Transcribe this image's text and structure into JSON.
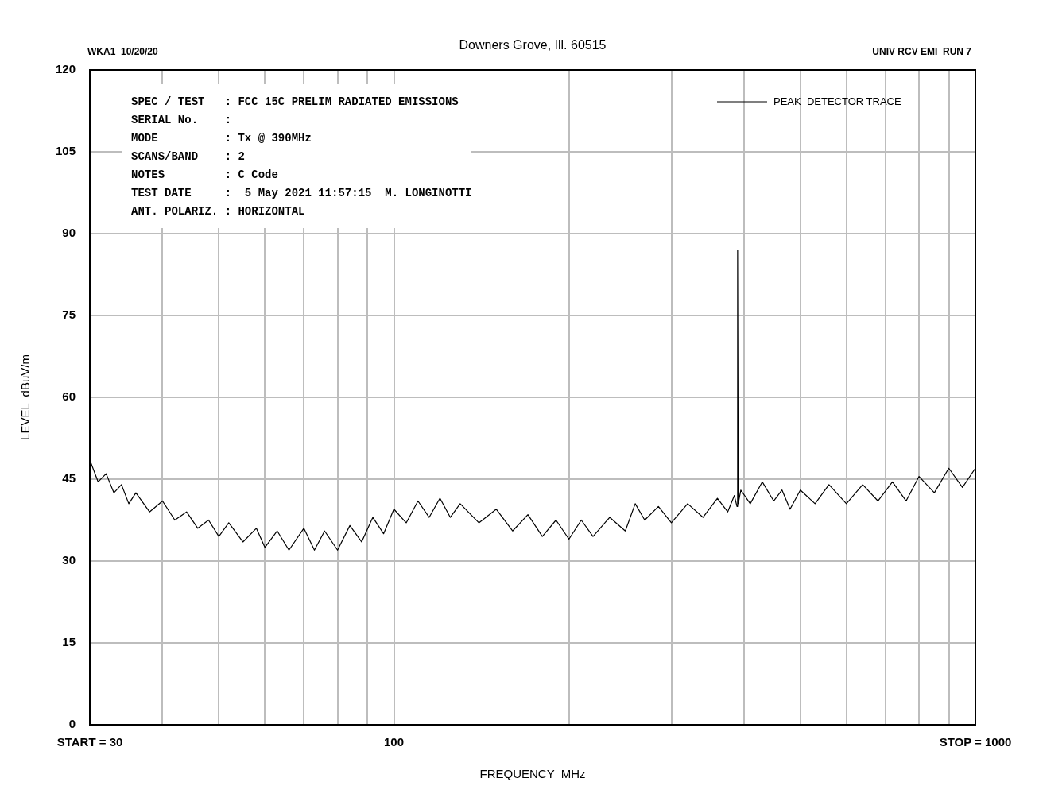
{
  "chart_data": {
    "type": "line",
    "subtitle": "Downers Grove, Ill. 60515",
    "xlabel": "FREQUENCY  MHz",
    "ylabel": "LEVEL  dBuV/m",
    "annotations": [
      "WKA1  10/20/20",
      "UNIV RCV EMI  RUN 7",
      "SPEC / TEST   : FCC 15C PRELIM RADIATED EMISSIONS",
      "SERIAL No.    :",
      "MODE          : Tx @ 390MHz",
      "SCANS/BAND    : 2",
      "NOTES         : C Code",
      "TEST DATE     :  5 May 2021 11:57:15  M. LONGINOTTI",
      "ANT. POLARIZ. : HORIZONTAL"
    ],
    "x": [
      30,
      31,
      32,
      33,
      34,
      35,
      36,
      38,
      40,
      42,
      44,
      46,
      48,
      50,
      52,
      55,
      58,
      60,
      63,
      66,
      70,
      73,
      76,
      80,
      84,
      88,
      92,
      96,
      100,
      105,
      110,
      115,
      120,
      125,
      130,
      140,
      150,
      160,
      170,
      180,
      190,
      200,
      210,
      220,
      235,
      250,
      260,
      270,
      285,
      300,
      320,
      340,
      360,
      375,
      385,
      389,
      390,
      391,
      395,
      410,
      430,
      450,
      465,
      480,
      500,
      530,
      560,
      600,
      640,
      680,
      720,
      760,
      800,
      850,
      900,
      950,
      1000
    ],
    "series": [
      {
        "name": "PEAK  DETECTOR TRACE",
        "color": "#000000",
        "values": [
          48.5,
          44.5,
          46,
          42.5,
          44,
          40.5,
          42.5,
          39,
          41,
          37.5,
          39,
          36,
          37.5,
          34.5,
          37,
          33.5,
          36,
          32.5,
          35.5,
          32,
          36,
          32,
          35.5,
          32,
          36.5,
          33.5,
          38,
          35,
          39.5,
          37,
          41,
          38,
          41.5,
          38,
          40.5,
          37,
          39.5,
          35.5,
          38.5,
          34.5,
          37.5,
          34,
          37.5,
          34.5,
          38,
          35.5,
          40.5,
          37.5,
          40,
          37,
          40.5,
          38,
          41.5,
          39,
          42,
          40,
          87,
          40.5,
          43,
          40.5,
          44.5,
          41,
          43,
          39.5,
          43,
          40.5,
          44,
          40.5,
          44,
          41,
          44.5,
          41,
          45.5,
          42.5,
          47,
          43.5,
          47
        ]
      }
    ],
    "xlim": [
      30,
      1000
    ],
    "xticks": [
      {
        "value": 30,
        "label": "START = 30"
      },
      {
        "value": 40,
        "label": null
      },
      {
        "value": 50,
        "label": null
      },
      {
        "value": 60,
        "label": null
      },
      {
        "value": 70,
        "label": null
      },
      {
        "value": 80,
        "label": null
      },
      {
        "value": 90,
        "label": null
      },
      100,
      {
        "value": 200,
        "label": null
      },
      {
        "value": 300,
        "label": null
      },
      {
        "value": 400,
        "label": null
      },
      {
        "value": 500,
        "label": null
      },
      {
        "value": 600,
        "label": null
      },
      {
        "value": 700,
        "label": null
      },
      {
        "value": 800,
        "label": null
      },
      {
        "value": 900,
        "label": null
      },
      {
        "value": 1000,
        "label": "STOP = 1000"
      }
    ],
    "ylim": [
      0,
      120
    ],
    "yticks": [
      0,
      15,
      30,
      45,
      60,
      75,
      90,
      105,
      120
    ],
    "log": "x",
    "grid": true,
    "legend": "top right",
    "marker": "none",
    "line_style": "solid"
  }
}
